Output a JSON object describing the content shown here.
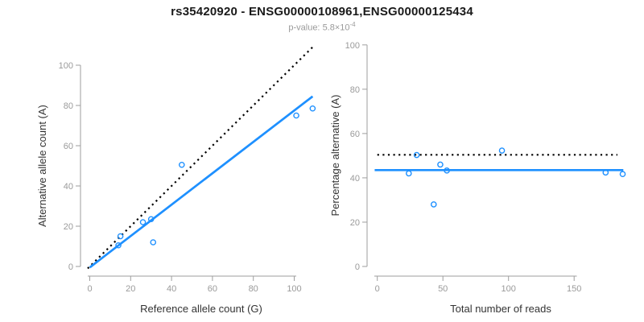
{
  "figure": {
    "title": "rs35420920 - ENSG00000108961,ENSG00000125434",
    "subtitle": {
      "prefix": "p-value: ",
      "mantissa": "5.8×10",
      "exponent": "-4"
    }
  },
  "colors": {
    "accent_blue": "#1E90FF",
    "line_black": "#000000",
    "axis_gray": "#9E9E9E",
    "tick_label_gray": "#9A9A9A",
    "axis_title_dark": "#333333",
    "title_black": "#1A1A1A",
    "subtitle_gray": "#9A9A9A"
  },
  "chart_data": [
    {
      "type": "scatter",
      "name": "allele-count-panel",
      "title": "",
      "xlabel": "Reference allele count (G)",
      "ylabel": "Alternative allele count (A)",
      "xlim": [
        0,
        113
      ],
      "ylim": [
        0,
        112
      ],
      "xticks": [
        0,
        20,
        40,
        60,
        80,
        100
      ],
      "yticks": [
        0,
        20,
        40,
        60,
        80,
        100
      ],
      "grid": false,
      "legend": null,
      "point_color": "#1E90FF",
      "points": [
        [
          14,
          10.5
        ],
        [
          15,
          15
        ],
        [
          26,
          22
        ],
        [
          30,
          23.5
        ],
        [
          31,
          12
        ],
        [
          45,
          50.5
        ],
        [
          101,
          75
        ],
        [
          109,
          78.5
        ]
      ],
      "lines": [
        {
          "name": "identity-expected",
          "style": "dotted",
          "color": "#000000",
          "points": [
            [
              -1,
              -1
            ],
            [
              110,
              110
            ]
          ]
        },
        {
          "name": "regression-fit",
          "style": "solid",
          "color": "#1E90FF",
          "points": [
            [
              0,
              -0.5
            ],
            [
              109,
              84.5
            ]
          ]
        }
      ]
    },
    {
      "type": "scatter",
      "name": "percentage-panel",
      "title": "",
      "xlabel": "Total number of reads",
      "ylabel": "Percentage alternative (A)",
      "xlim": [
        0,
        196
      ],
      "ylim": [
        0,
        100
      ],
      "xticks": [
        0,
        50,
        100,
        150
      ],
      "yticks": [
        0,
        20,
        40,
        60,
        80,
        100
      ],
      "grid": false,
      "legend": null,
      "point_color": "#1E90FF",
      "points": [
        [
          24,
          42
        ],
        [
          30,
          50.3
        ],
        [
          43,
          28
        ],
        [
          48,
          46
        ],
        [
          53,
          43.3
        ],
        [
          95,
          52.3
        ],
        [
          174,
          42.4
        ],
        [
          187,
          41.7
        ]
      ],
      "lines": [
        {
          "name": "expected-50pct",
          "style": "dotted",
          "color": "#000000",
          "points": [
            [
              0,
              50.4
            ],
            [
              183,
              50.4
            ]
          ]
        },
        {
          "name": "mean-fit",
          "style": "solid",
          "color": "#1E90FF",
          "points": [
            [
              -2,
              43.5
            ],
            [
              187.5,
              43.5
            ]
          ]
        }
      ]
    }
  ]
}
